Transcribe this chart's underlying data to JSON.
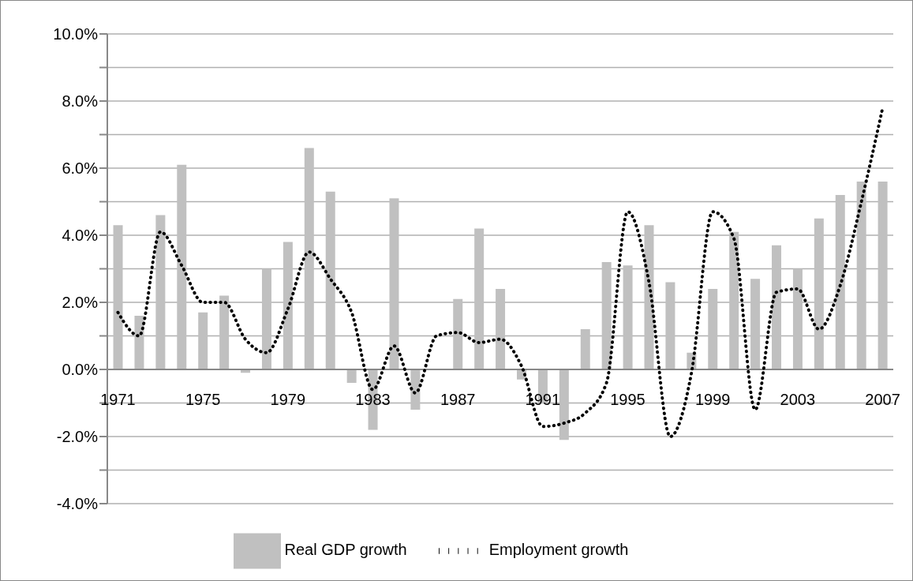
{
  "chart_data": {
    "type": "bar",
    "categories": [
      "1971",
      null,
      null,
      null,
      "1975",
      null,
      null,
      null,
      "1979",
      null,
      null,
      null,
      "1983",
      null,
      null,
      null,
      "1987",
      null,
      null,
      null,
      "1991",
      null,
      null,
      null,
      "1995",
      null,
      null,
      null,
      "1999",
      null,
      null,
      null,
      "2003",
      null,
      null,
      null,
      "2007"
    ],
    "series": [
      {
        "name": "Real GDP growth",
        "color": "#c0c0c0",
        "values": [
          4.3,
          1.6,
          4.6,
          6.1,
          1.7,
          2.2,
          -0.1,
          3.0,
          3.8,
          6.6,
          5.3,
          -0.4,
          -1.8,
          5.1,
          -1.2,
          0.0,
          2.1,
          4.2,
          2.4,
          -0.3,
          -1.0,
          -2.1,
          1.2,
          3.2,
          3.1,
          4.3,
          2.6,
          0.5,
          2.4,
          4.1,
          2.7,
          3.7,
          3.0,
          4.5,
          5.2,
          5.6,
          5.6
        ]
      },
      {
        "name": "Employment growth",
        "type": "line",
        "color": "#000000",
        "line_style": "dotted",
        "marker": "none",
        "values": [
          1.7,
          1.0,
          4.1,
          3.1,
          2.0,
          2.0,
          0.9,
          0.5,
          1.8,
          3.5,
          2.7,
          1.7,
          -0.6,
          0.7,
          -0.7,
          1.0,
          1.1,
          0.8,
          0.9,
          0.1,
          -1.7,
          -1.6,
          -1.3,
          -0.4,
          4.7,
          2.6,
          -2.0,
          -0.1,
          4.7,
          3.9,
          -1.2,
          2.3,
          2.4,
          1.2,
          2.5,
          5.0,
          7.8
        ]
      }
    ],
    "ylim": [
      -4,
      10
    ],
    "yticks": [
      {
        "value": -4,
        "label": "-4.0%"
      },
      {
        "value": -3,
        "label": null
      },
      {
        "value": -2,
        "label": "-2.0%"
      },
      {
        "value": -1,
        "label": null
      },
      {
        "value": 0,
        "label": "0.0%"
      },
      {
        "value": 1,
        "label": null
      },
      {
        "value": 2,
        "label": "2.0%"
      },
      {
        "value": 3,
        "label": null
      },
      {
        "value": 4,
        "label": "4.0%"
      },
      {
        "value": 5,
        "label": null
      },
      {
        "value": 6,
        "label": "6.0%"
      },
      {
        "value": 7,
        "label": null
      },
      {
        "value": 8,
        "label": "8.0%"
      },
      {
        "value": 9,
        "label": null
      },
      {
        "value": 10,
        "label": "10.0%"
      }
    ],
    "grid": "y",
    "legend": "bottom"
  }
}
